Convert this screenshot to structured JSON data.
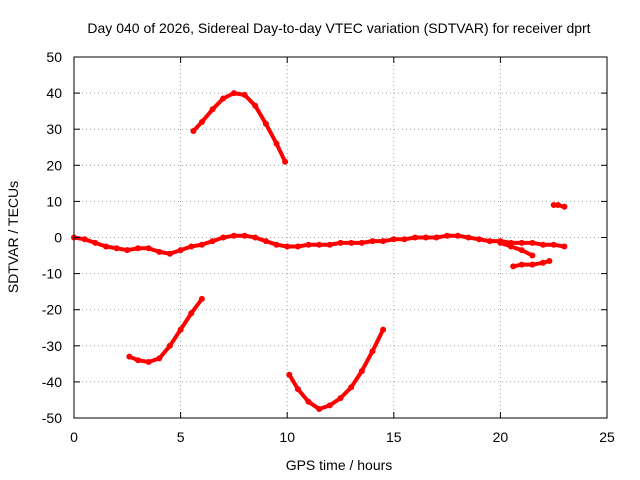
{
  "chart_data": {
    "type": "scatter",
    "title": "Day 040 of 2026, Sidereal Day-to-day VTEC variation (SDTVAR) for receiver dprt",
    "xlabel": "GPS time / hours",
    "ylabel": "SDTVAR / TECUs",
    "xlim": [
      0,
      25
    ],
    "ylim": [
      -50,
      50
    ],
    "xticks": [
      0,
      5,
      10,
      15,
      20,
      25
    ],
    "yticks": [
      -50,
      -40,
      -30,
      -20,
      -10,
      0,
      10,
      20,
      30,
      40,
      50
    ],
    "grid": true,
    "legend": "none",
    "series_color": "#ff0000",
    "series": [
      {
        "name": "main-arc",
        "x": [
          0.0,
          0.5,
          1.0,
          1.5,
          2.0,
          2.5,
          3.0,
          3.5,
          4.0,
          4.5,
          5.0,
          5.5,
          6.0,
          6.5,
          7.0,
          7.5,
          8.0,
          8.5,
          9.0,
          9.5,
          10.0,
          10.5,
          11.0,
          11.5,
          12.0,
          12.5,
          13.0,
          13.5,
          14.0,
          14.5,
          15.0,
          15.5,
          16.0,
          16.5,
          17.0,
          17.5,
          18.0,
          18.5,
          19.0,
          19.5,
          20.0,
          20.5,
          21.0,
          21.5,
          22.0,
          22.5,
          23.0
        ],
        "y": [
          0.0,
          -0.5,
          -1.5,
          -2.5,
          -3.0,
          -3.5,
          -3.0,
          -3.0,
          -4.0,
          -4.5,
          -3.5,
          -2.5,
          -2.0,
          -1.0,
          0.0,
          0.5,
          0.5,
          0.0,
          -1.0,
          -2.0,
          -2.5,
          -2.5,
          -2.0,
          -2.0,
          -2.0,
          -1.5,
          -1.5,
          -1.5,
          -1.0,
          -1.0,
          -0.5,
          -0.5,
          0.0,
          0.0,
          0.0,
          0.5,
          0.5,
          0.0,
          -0.5,
          -1.0,
          -1.0,
          -1.5,
          -1.5,
          -1.5,
          -2.0,
          -2.0,
          -2.5
        ]
      },
      {
        "name": "arc-high-peak",
        "x": [
          5.6,
          6.0,
          6.5,
          7.0,
          7.5,
          8.0,
          8.5,
          9.0,
          9.5,
          9.9
        ],
        "y": [
          29.5,
          32.0,
          35.5,
          38.5,
          40.0,
          39.5,
          36.5,
          31.5,
          26.0,
          21.0
        ]
      },
      {
        "name": "arc-low-rise",
        "x": [
          2.6,
          3.0,
          3.5,
          4.0,
          4.5,
          5.0,
          5.5,
          6.0
        ],
        "y": [
          -33.0,
          -34.0,
          -34.5,
          -33.5,
          -30.0,
          -25.5,
          -21.0,
          -17.0
        ]
      },
      {
        "name": "arc-deep-dip",
        "x": [
          10.1,
          10.5,
          11.0,
          11.5,
          12.0,
          12.5,
          13.0,
          13.5,
          14.0,
          14.5
        ],
        "y": [
          -38.0,
          -42.0,
          -45.5,
          -47.5,
          -46.5,
          -44.5,
          -41.5,
          -37.0,
          -31.5,
          -25.5
        ]
      },
      {
        "name": "arc-late-low",
        "x": [
          20.6,
          21.0,
          21.5,
          22.0,
          22.3
        ],
        "y": [
          -8.0,
          -7.5,
          -7.5,
          -7.0,
          -6.5
        ]
      },
      {
        "name": "arc-late-branch",
        "x": [
          20.0,
          20.5,
          21.0,
          21.5
        ],
        "y": [
          -1.5,
          -2.5,
          -3.5,
          -5.0
        ]
      },
      {
        "name": "arc-late-high",
        "x": [
          22.5,
          22.7,
          23.0
        ],
        "y": [
          9.0,
          9.0,
          8.5
        ]
      }
    ]
  }
}
